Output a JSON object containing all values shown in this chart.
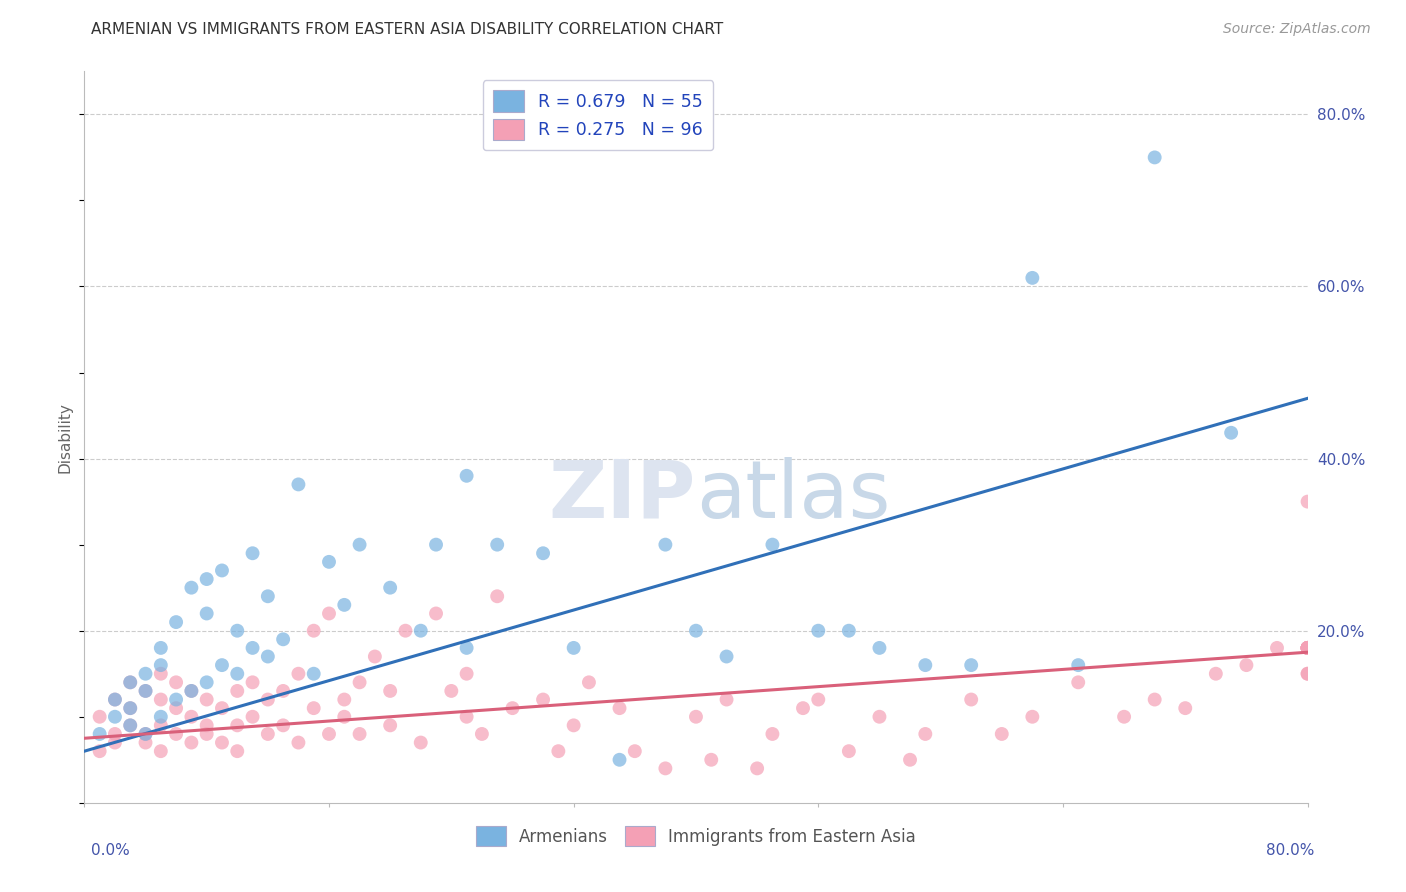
{
  "title": "ARMENIAN VS IMMIGRANTS FROM EASTERN ASIA DISABILITY CORRELATION CHART",
  "source": "Source: ZipAtlas.com",
  "ylabel": "Disability",
  "armenian_color": "#7ab3e0",
  "immigrant_color": "#f4a0b5",
  "armenian_line_color": "#3070b8",
  "immigrant_line_color": "#d9607a",
  "legend_label_armenian": "Armenians",
  "legend_label_immigrant": "Immigrants from Eastern Asia",
  "watermark_zip": "ZIP",
  "watermark_atlas": "atlas",
  "background_color": "#ffffff",
  "armenian_scatter_x": [
    0.01,
    0.02,
    0.02,
    0.03,
    0.03,
    0.03,
    0.04,
    0.04,
    0.04,
    0.05,
    0.05,
    0.05,
    0.06,
    0.06,
    0.07,
    0.07,
    0.08,
    0.08,
    0.08,
    0.09,
    0.09,
    0.1,
    0.1,
    0.11,
    0.11,
    0.12,
    0.12,
    0.13,
    0.14,
    0.15,
    0.16,
    0.17,
    0.18,
    0.2,
    0.22,
    0.23,
    0.25,
    0.25,
    0.27,
    0.3,
    0.32,
    0.35,
    0.38,
    0.4,
    0.42,
    0.45,
    0.48,
    0.5,
    0.52,
    0.55,
    0.58,
    0.62,
    0.65,
    0.7,
    0.75
  ],
  "armenian_scatter_y": [
    0.08,
    0.1,
    0.12,
    0.09,
    0.11,
    0.14,
    0.08,
    0.13,
    0.15,
    0.1,
    0.16,
    0.18,
    0.12,
    0.21,
    0.13,
    0.25,
    0.14,
    0.22,
    0.26,
    0.16,
    0.27,
    0.15,
    0.2,
    0.18,
    0.29,
    0.17,
    0.24,
    0.19,
    0.37,
    0.15,
    0.28,
    0.23,
    0.3,
    0.25,
    0.2,
    0.3,
    0.38,
    0.18,
    0.3,
    0.29,
    0.18,
    0.05,
    0.3,
    0.2,
    0.17,
    0.3,
    0.2,
    0.2,
    0.18,
    0.16,
    0.16,
    0.61,
    0.16,
    0.75,
    0.43
  ],
  "immigrant_scatter_x": [
    0.01,
    0.01,
    0.02,
    0.02,
    0.02,
    0.03,
    0.03,
    0.03,
    0.04,
    0.04,
    0.04,
    0.05,
    0.05,
    0.05,
    0.05,
    0.06,
    0.06,
    0.06,
    0.07,
    0.07,
    0.07,
    0.08,
    0.08,
    0.08,
    0.09,
    0.09,
    0.1,
    0.1,
    0.1,
    0.11,
    0.11,
    0.12,
    0.12,
    0.13,
    0.13,
    0.14,
    0.14,
    0.15,
    0.15,
    0.16,
    0.16,
    0.17,
    0.17,
    0.18,
    0.18,
    0.19,
    0.2,
    0.2,
    0.21,
    0.22,
    0.23,
    0.24,
    0.25,
    0.25,
    0.26,
    0.27,
    0.28,
    0.3,
    0.31,
    0.32,
    0.33,
    0.35,
    0.36,
    0.38,
    0.4,
    0.41,
    0.42,
    0.44,
    0.45,
    0.47,
    0.48,
    0.5,
    0.52,
    0.54,
    0.55,
    0.58,
    0.6,
    0.62,
    0.65,
    0.68,
    0.7,
    0.72,
    0.74,
    0.76,
    0.78,
    0.8,
    0.8,
    0.8,
    0.8,
    0.8,
    0.8,
    0.8,
    0.8,
    0.8,
    0.8,
    0.8,
    0.8
  ],
  "immigrant_scatter_y": [
    0.06,
    0.1,
    0.08,
    0.12,
    0.07,
    0.09,
    0.11,
    0.14,
    0.08,
    0.13,
    0.07,
    0.09,
    0.12,
    0.06,
    0.15,
    0.08,
    0.11,
    0.14,
    0.1,
    0.13,
    0.07,
    0.09,
    0.12,
    0.08,
    0.11,
    0.07,
    0.09,
    0.13,
    0.06,
    0.1,
    0.14,
    0.08,
    0.12,
    0.09,
    0.13,
    0.07,
    0.15,
    0.11,
    0.2,
    0.08,
    0.22,
    0.12,
    0.1,
    0.14,
    0.08,
    0.17,
    0.09,
    0.13,
    0.2,
    0.07,
    0.22,
    0.13,
    0.1,
    0.15,
    0.08,
    0.24,
    0.11,
    0.12,
    0.06,
    0.09,
    0.14,
    0.11,
    0.06,
    0.04,
    0.1,
    0.05,
    0.12,
    0.04,
    0.08,
    0.11,
    0.12,
    0.06,
    0.1,
    0.05,
    0.08,
    0.12,
    0.08,
    0.1,
    0.14,
    0.1,
    0.12,
    0.11,
    0.15,
    0.16,
    0.18,
    0.15,
    0.35,
    0.15,
    0.18,
    0.18,
    0.18,
    0.18,
    0.18,
    0.18,
    0.18,
    0.18,
    0.18
  ],
  "armenian_line_y_start": 0.06,
  "armenian_line_y_end": 0.47,
  "immigrant_line_y_start": 0.075,
  "immigrant_line_y_end": 0.175,
  "xlim": [
    0.0,
    0.8
  ],
  "ylim": [
    0.0,
    0.85
  ],
  "ytick_positions": [
    0.2,
    0.4,
    0.6,
    0.8
  ],
  "ytick_labels": [
    "20.0%",
    "40.0%",
    "60.0%",
    "80.0%"
  ],
  "grid_color": "#cccccc",
  "title_fontsize": 11,
  "source_fontsize": 10
}
